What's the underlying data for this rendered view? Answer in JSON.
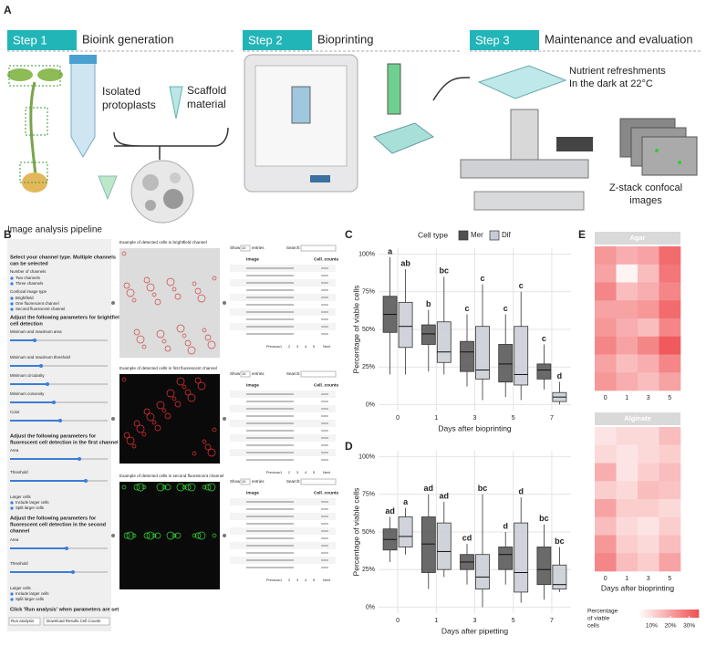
{
  "panel_letters": [
    "A",
    "B",
    "C",
    "D",
    "E"
  ],
  "panel_a": {
    "steps": [
      {
        "label": "Step 1",
        "title": "Bioink generation"
      },
      {
        "label": "Step 2",
        "title": "Bioprinting"
      },
      {
        "label": "Step 3",
        "title": "Maintenance and evaluation"
      }
    ],
    "labels": [
      "Isolated",
      "protoplasts",
      "Scaffold",
      "material",
      "Nutrient refreshments",
      "In the dark at 22°C",
      "Z-stack confocal",
      "images"
    ]
  },
  "panel_b": {
    "title": "Image analysis pipeline",
    "sidebar": [
      "Select your channel type. Multiple channels",
      "can be selected",
      "Number of channels",
      "Two channels",
      "Three channels",
      "Confocal image type",
      "Brightfield",
      "One fluorescent channel",
      "Second fluorescent channel",
      "Adjust the following parameters for brightfield",
      "cell detection",
      "Minimum and maximum area",
      "Minimum and maximum threshold",
      "Minimum circularity",
      "Minimum convexity",
      "Color",
      "Adjust the following parameters for",
      "fluorescent cell detection in the first channel",
      "Area",
      "Threshold",
      "Larger cells",
      "Include larger cells",
      "Split larger cells",
      "Adjust the following parameters for",
      "fluorescent cell detection in the second",
      "channel",
      "Area",
      "Threshold",
      "Larger cells",
      "Include larger cells",
      "Split larger cells",
      "Click 'Run analysis' when parameters are set",
      "Run analysis",
      "Download Results Cell Counts"
    ],
    "captions": [
      "Example of detected cells in brightfield channel",
      "Example of detected cells in first fluorescent channel",
      "Example of detected cells in second fluorescent channel"
    ],
    "table": {
      "show": "Show",
      "entries": "entries",
      "page_size": "10",
      "search": "Search:",
      "columns": [
        "Image",
        "Cell_counts"
      ],
      "pager": [
        "Previous",
        "1",
        "2",
        "3",
        "4",
        "5",
        "Next"
      ]
    }
  },
  "chart_data": [
    {
      "type": "box",
      "legend": true,
      "legend_title": "Cell type",
      "ylabel": "Percentage of viable cells",
      "xlabel": "Days after bioprinting",
      "categories": [
        "0",
        "1",
        "3",
        "5",
        "7"
      ],
      "ylim": [
        -4,
        104
      ],
      "yticks": [
        {
          "value": 0,
          "label": "0%"
        },
        {
          "value": 25,
          "label": "25%"
        },
        {
          "value": 50,
          "label": "50%"
        },
        {
          "value": 75,
          "label": "75%"
        },
        {
          "value": 100,
          "label": "100%"
        }
      ],
      "grid": true,
      "series": [
        {
          "name": "Mer",
          "color": "#505050",
          "stats": [
            [
              20,
              48,
              60,
              72,
              98
            ],
            [
              22,
              40,
              47,
              53,
              63
            ],
            [
              12,
              22,
              35,
              42,
              60
            ],
            [
              5,
              15,
              27,
              40,
              60
            ],
            [
              10,
              17,
              23,
              27,
              40
            ]
          ],
          "letters": [
            "a",
            "b",
            "c",
            "c",
            "c"
          ]
        },
        {
          "name": "Dif",
          "color": "#c8ccd4",
          "stats": [
            [
              20,
              38,
              52,
              68,
              90
            ],
            [
              20,
              28,
              35,
              55,
              85
            ],
            [
              3,
              17,
              23,
              52,
              80
            ],
            [
              3,
              13,
              20,
              52,
              75
            ],
            [
              0,
              2,
              5,
              8,
              15
            ]
          ],
          "letters": [
            "ab",
            "bc",
            "c",
            "c",
            "d"
          ]
        }
      ]
    },
    {
      "type": "box",
      "legend": false,
      "ylabel": "Percentage of viable cells",
      "xlabel": "Days after pipetting",
      "categories": [
        "0",
        "1",
        "3",
        "5",
        "7"
      ],
      "ylim": [
        -4,
        104
      ],
      "yticks": [
        {
          "value": 0,
          "label": "0%"
        },
        {
          "value": 25,
          "label": "25%"
        },
        {
          "value": 50,
          "label": "50%"
        },
        {
          "value": 75,
          "label": "75%"
        },
        {
          "value": 100,
          "label": "100%"
        }
      ],
      "grid": true,
      "series": [
        {
          "name": "Mer",
          "color": "#505050",
          "stats": [
            [
              30,
              38,
              45,
              52,
              60
            ],
            [
              12,
              23,
              42,
              60,
              75
            ],
            [
              15,
              25,
              30,
              35,
              42
            ],
            [
              15,
              25,
              35,
              40,
              50
            ],
            [
              5,
              15,
              25,
              40,
              55
            ]
          ],
          "letters": [
            "ad",
            "ad",
            "cd",
            "d",
            "bc"
          ]
        },
        {
          "name": "Dif",
          "color": "#c8ccd4",
          "stats": [
            [
              35,
              40,
              47,
              60,
              66
            ],
            [
              20,
              25,
              37,
              56,
              70
            ],
            [
              0,
              12,
              20,
              35,
              75
            ],
            [
              3,
              10,
              23,
              56,
              73
            ],
            [
              10,
              12,
              15,
              28,
              40
            ]
          ],
          "letters": [
            "a",
            "ad",
            "bc",
            "d",
            "bc"
          ]
        }
      ]
    },
    {
      "type": "heatmap",
      "title": "Agar",
      "categories": [
        "0",
        "1",
        "3",
        "5"
      ],
      "clim": [
        3,
        35
      ],
      "colors": [
        "#ffffff",
        "#ef4f52"
      ],
      "values": [
        [
          22,
          18,
          20,
          30
        ],
        [
          20,
          5,
          15,
          28
        ],
        [
          25,
          15,
          18,
          25
        ],
        [
          20,
          20,
          22,
          30
        ],
        [
          22,
          18,
          15,
          25
        ],
        [
          25,
          20,
          25,
          33
        ],
        [
          20,
          15,
          18,
          25
        ],
        [
          22,
          18,
          15,
          20
        ]
      ]
    },
    {
      "type": "heatmap",
      "title": "Alginate",
      "xlabel": "Days after bioprinting",
      "categories": [
        "0",
        "1",
        "3",
        "5"
      ],
      "clim": [
        3,
        35
      ],
      "colors": [
        "#ffffff",
        "#ef4f52"
      ],
      "values": [
        [
          8,
          10,
          10,
          15
        ],
        [
          10,
          8,
          10,
          12
        ],
        [
          18,
          8,
          12,
          15
        ],
        [
          12,
          10,
          15,
          14
        ],
        [
          20,
          12,
          12,
          10
        ],
        [
          15,
          10,
          8,
          12
        ],
        [
          22,
          12,
          10,
          15
        ],
        [
          25,
          15,
          12,
          20
        ]
      ]
    }
  ],
  "colorbar": {
    "title": [
      "Percentage",
      "of viable",
      "cells"
    ],
    "clim": [
      3,
      35
    ],
    "colors": [
      "#ffffff",
      "#ef4f52"
    ],
    "ticks": [
      {
        "value": 10,
        "label": "10%"
      },
      {
        "value": 20,
        "label": "20%"
      },
      {
        "value": 30,
        "label": "30%"
      }
    ]
  }
}
